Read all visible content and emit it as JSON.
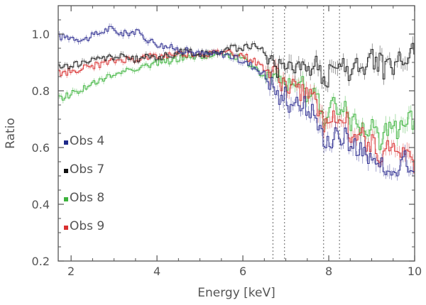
{
  "chart_data": {
    "type": "line",
    "title": "",
    "xlabel": "Energy [keV]",
    "ylabel": "Ratio",
    "xlim": [
      1.7,
      10.0
    ],
    "ylim": [
      0.2,
      1.1
    ],
    "xticks": [
      2,
      4,
      6,
      8,
      10
    ],
    "xtick_labels": [
      "2",
      "4",
      "6",
      "8",
      "10"
    ],
    "yticks": [
      0.2,
      0.4,
      0.6,
      0.8,
      1.0
    ],
    "ytick_labels": [
      "0.2",
      "0.4",
      "0.6",
      "0.8",
      "1.0"
    ],
    "vertical_lines": [
      6.7,
      6.97,
      7.88,
      8.25
    ],
    "legend_position": "left",
    "series": [
      {
        "name": "Obs 4",
        "color": "#2b2b8f",
        "x": [
          1.7,
          2.0,
          2.3,
          2.6,
          2.9,
          3.2,
          3.5,
          3.8,
          4.1,
          4.4,
          4.7,
          5.0,
          5.3,
          5.6,
          5.9,
          6.2,
          6.5,
          6.7,
          6.8,
          6.9,
          7.0,
          7.1,
          7.2,
          7.3,
          7.4,
          7.5,
          7.6,
          7.7,
          7.8,
          7.9,
          8.0,
          8.1,
          8.2,
          8.3,
          8.4,
          8.5,
          8.6,
          8.7,
          8.8,
          8.9,
          9.0,
          9.1,
          9.2,
          9.3,
          9.4,
          9.5,
          9.6,
          9.7,
          9.8,
          9.9,
          10.0
        ],
        "y": [
          0.99,
          0.99,
          0.98,
          1.0,
          1.02,
          1.0,
          1.01,
          0.98,
          0.96,
          0.95,
          0.94,
          0.93,
          0.93,
          0.93,
          0.91,
          0.89,
          0.86,
          0.82,
          0.79,
          0.76,
          0.8,
          0.74,
          0.78,
          0.73,
          0.77,
          0.72,
          0.74,
          0.7,
          0.69,
          0.6,
          0.62,
          0.64,
          0.66,
          0.61,
          0.68,
          0.56,
          0.63,
          0.58,
          0.6,
          0.54,
          0.55,
          0.56,
          0.52,
          0.55,
          0.51,
          0.55,
          0.53,
          0.58,
          0.56,
          0.5,
          0.52
        ]
      },
      {
        "name": "Obs 7",
        "color": "#1a1a1a",
        "x": [
          1.7,
          2.0,
          2.3,
          2.6,
          2.9,
          3.2,
          3.5,
          3.8,
          4.1,
          4.4,
          4.7,
          5.0,
          5.3,
          5.6,
          5.9,
          6.2,
          6.5,
          6.7,
          6.8,
          6.9,
          7.0,
          7.1,
          7.2,
          7.3,
          7.4,
          7.5,
          7.6,
          7.7,
          7.8,
          7.9,
          8.0,
          8.1,
          8.2,
          8.3,
          8.4,
          8.5,
          8.6,
          8.7,
          8.8,
          8.9,
          9.0,
          9.1,
          9.2,
          9.3,
          9.4,
          9.5,
          9.6,
          9.7,
          9.8,
          9.9,
          10.0
        ],
        "y": [
          0.88,
          0.89,
          0.9,
          0.91,
          0.92,
          0.92,
          0.91,
          0.92,
          0.92,
          0.93,
          0.94,
          0.93,
          0.93,
          0.95,
          0.95,
          0.96,
          0.94,
          0.9,
          0.88,
          0.89,
          0.91,
          0.9,
          0.87,
          0.88,
          0.87,
          0.9,
          0.86,
          0.89,
          0.87,
          0.83,
          0.85,
          0.92,
          0.88,
          0.91,
          0.84,
          0.88,
          0.93,
          0.86,
          0.9,
          0.87,
          0.94,
          0.89,
          0.91,
          0.86,
          0.95,
          0.88,
          0.92,
          0.9,
          0.87,
          0.97,
          0.92
        ]
      },
      {
        "name": "Obs 8",
        "color": "#3cb33c",
        "x": [
          1.7,
          2.0,
          2.3,
          2.6,
          2.9,
          3.2,
          3.5,
          3.8,
          4.1,
          4.4,
          4.7,
          5.0,
          5.3,
          5.6,
          5.9,
          6.2,
          6.5,
          6.7,
          6.8,
          6.9,
          7.0,
          7.1,
          7.2,
          7.3,
          7.4,
          7.5,
          7.6,
          7.7,
          7.8,
          7.9,
          8.0,
          8.1,
          8.2,
          8.3,
          8.4,
          8.5,
          8.6,
          8.7,
          8.8,
          8.9,
          9.0,
          9.1,
          9.2,
          9.3,
          9.4,
          9.5,
          9.6,
          9.7,
          9.8,
          9.9,
          10.0
        ],
        "y": [
          0.77,
          0.79,
          0.81,
          0.83,
          0.85,
          0.87,
          0.88,
          0.89,
          0.9,
          0.91,
          0.92,
          0.92,
          0.93,
          0.93,
          0.92,
          0.89,
          0.85,
          0.83,
          0.86,
          0.84,
          0.83,
          0.81,
          0.82,
          0.8,
          0.83,
          0.79,
          0.78,
          0.8,
          0.74,
          0.71,
          0.73,
          0.76,
          0.72,
          0.7,
          0.74,
          0.68,
          0.71,
          0.65,
          0.69,
          0.64,
          0.68,
          0.67,
          0.62,
          0.69,
          0.66,
          0.7,
          0.63,
          0.68,
          0.65,
          0.71,
          0.67
        ]
      },
      {
        "name": "Obs 9",
        "color": "#d93030",
        "x": [
          1.7,
          2.0,
          2.3,
          2.6,
          2.9,
          3.2,
          3.5,
          3.8,
          4.1,
          4.4,
          4.7,
          5.0,
          5.3,
          5.6,
          5.9,
          6.2,
          6.5,
          6.7,
          6.8,
          6.9,
          7.0,
          7.1,
          7.2,
          7.3,
          7.4,
          7.5,
          7.6,
          7.7,
          7.8,
          7.9,
          8.0,
          8.1,
          8.2,
          8.3,
          8.4,
          8.5,
          8.6,
          8.7,
          8.8,
          8.9,
          9.0,
          9.1,
          9.2,
          9.3,
          9.4,
          9.5,
          9.6,
          9.7,
          9.8,
          9.9,
          10.0
        ],
        "y": [
          0.86,
          0.87,
          0.88,
          0.89,
          0.9,
          0.91,
          0.91,
          0.92,
          0.92,
          0.93,
          0.93,
          0.93,
          0.93,
          0.94,
          0.93,
          0.91,
          0.88,
          0.85,
          0.87,
          0.83,
          0.82,
          0.8,
          0.83,
          0.79,
          0.81,
          0.78,
          0.8,
          0.75,
          0.72,
          0.66,
          0.7,
          0.73,
          0.69,
          0.68,
          0.72,
          0.63,
          0.67,
          0.61,
          0.66,
          0.59,
          0.62,
          0.6,
          0.56,
          0.62,
          0.58,
          0.63,
          0.57,
          0.6,
          0.55,
          0.58,
          0.54
        ]
      }
    ]
  },
  "legend": {
    "items": [
      {
        "label": "Obs 4",
        "color": "#1f2a8a"
      },
      {
        "label": "Obs 7",
        "color": "#111111"
      },
      {
        "label": "Obs 8",
        "color": "#3cb33c"
      },
      {
        "label": "Obs 9",
        "color": "#d93030"
      }
    ]
  }
}
